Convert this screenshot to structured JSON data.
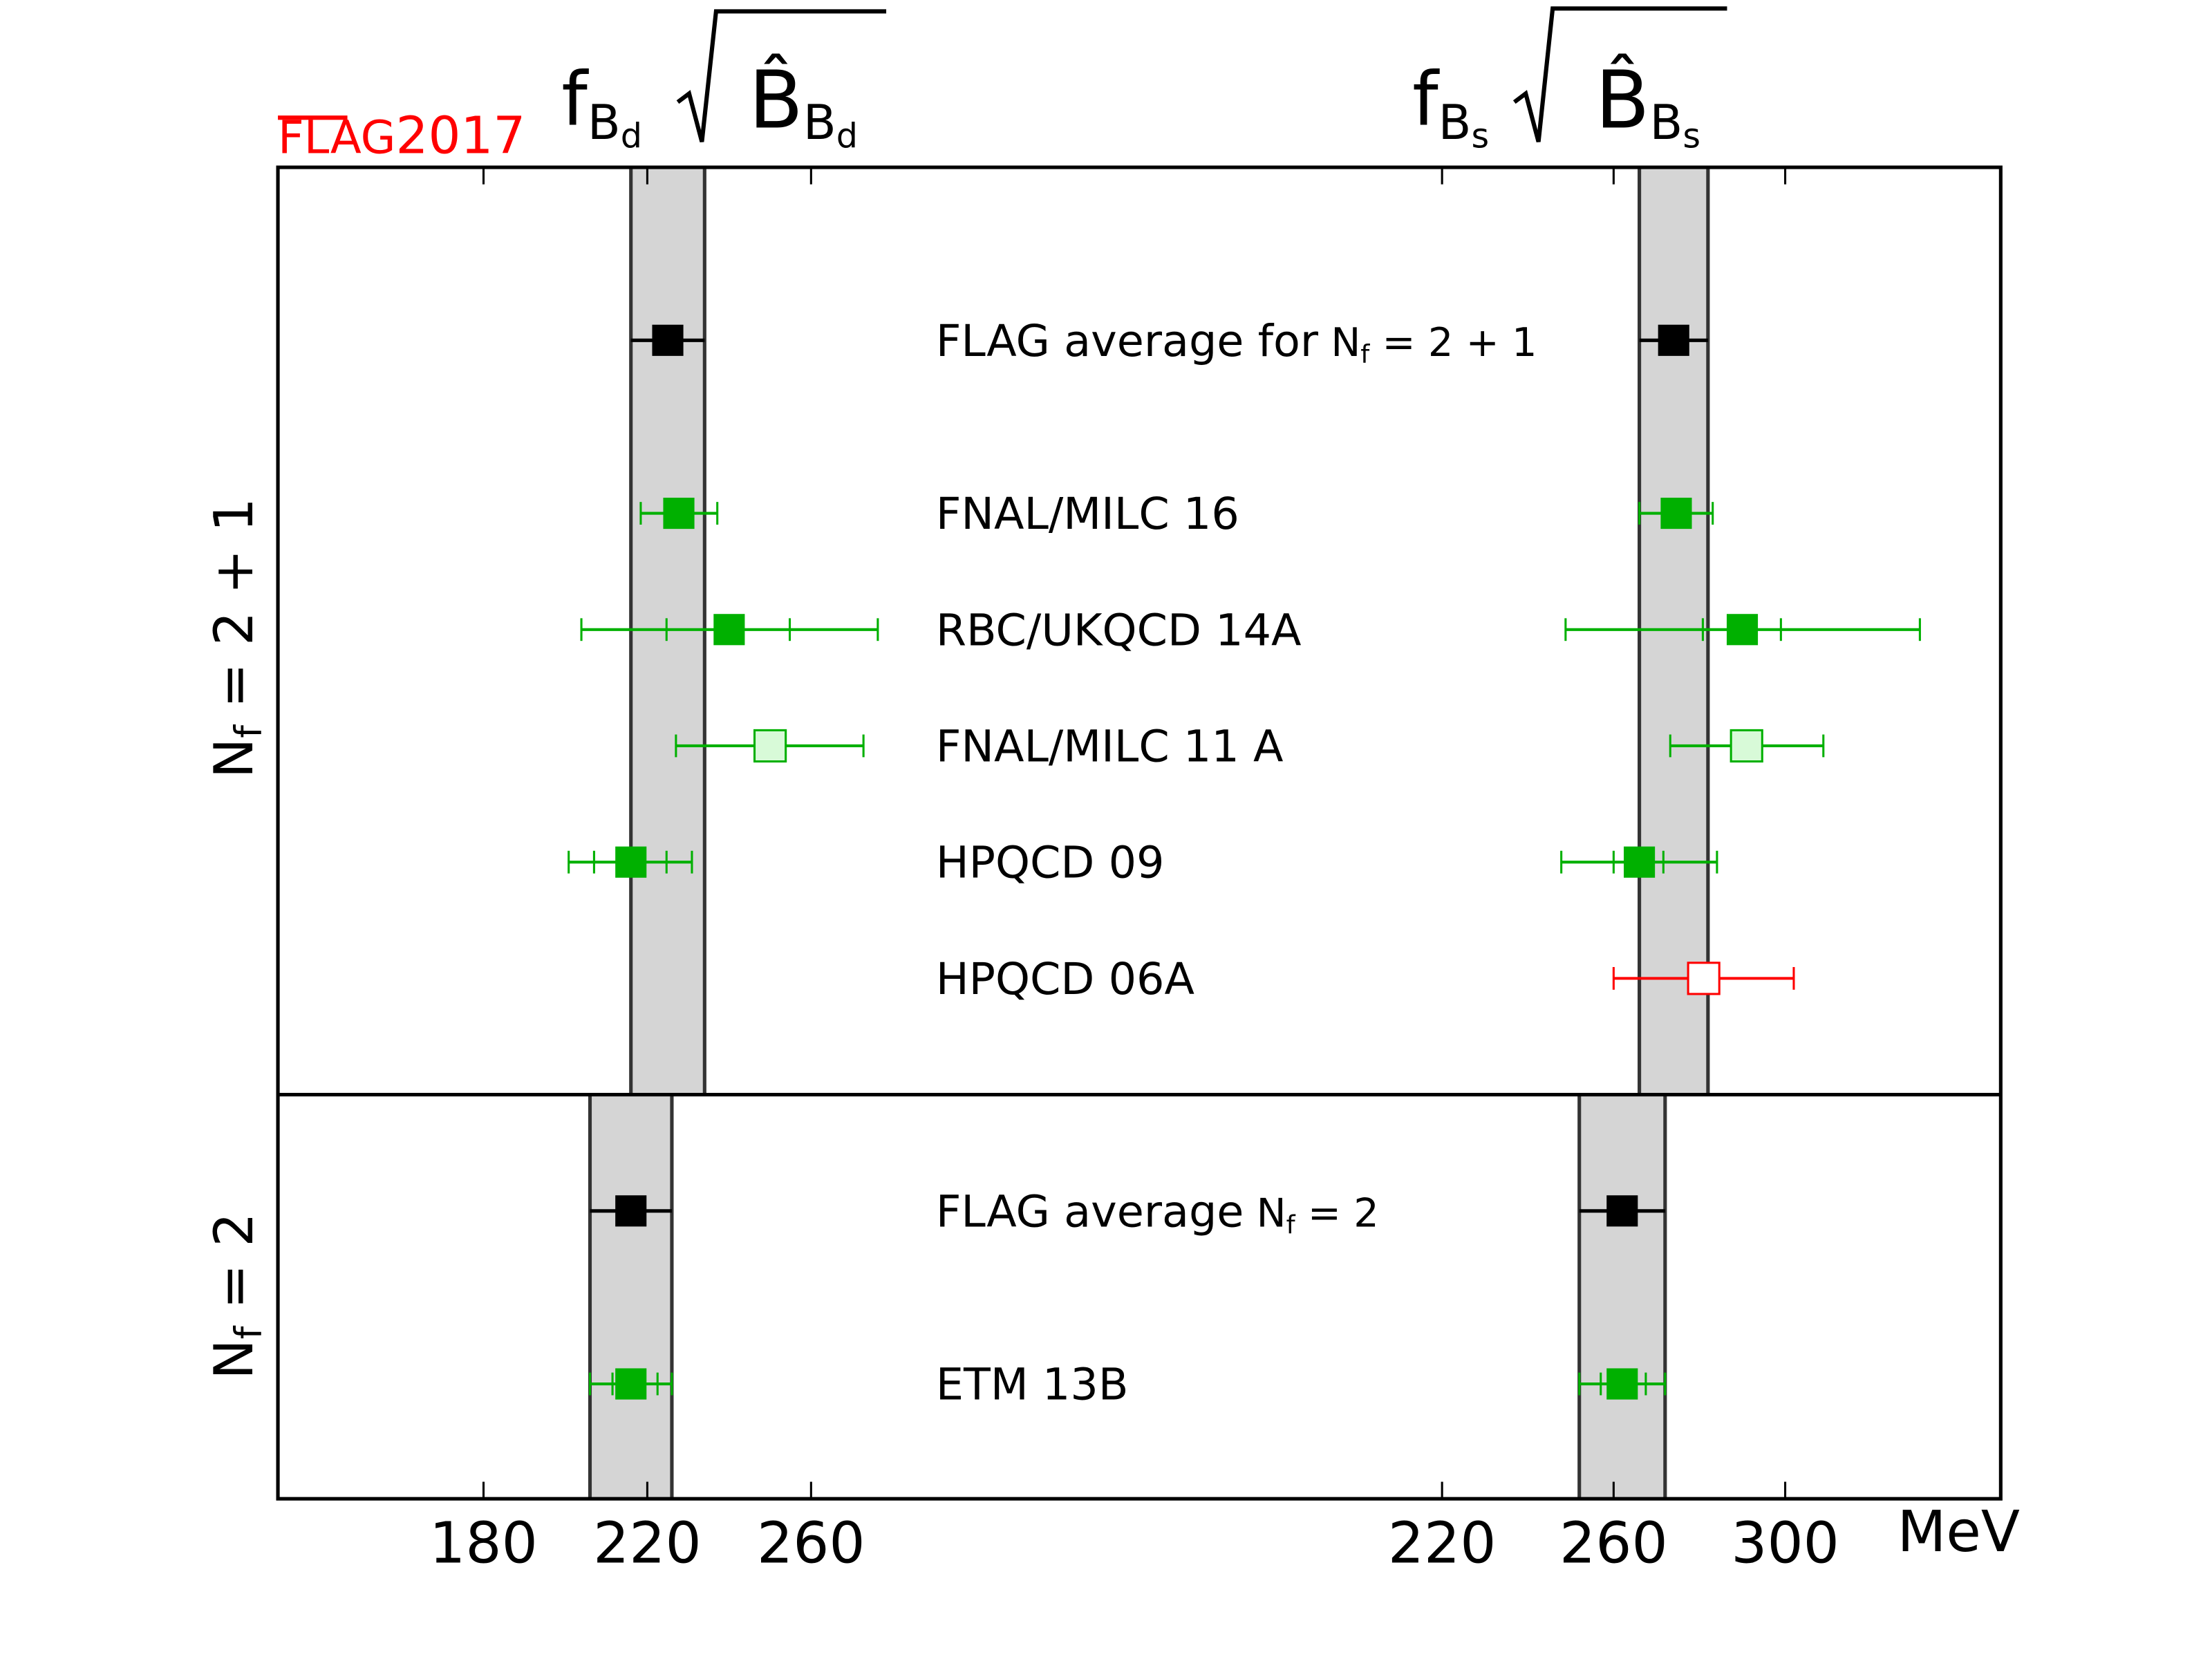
{
  "chart_data": {
    "type": "scatter",
    "subtype": "error-bar forest plot",
    "watermark": {
      "flag": "FLAG",
      "year": "2017",
      "color": "#ff0000"
    },
    "titles": {
      "left": {
        "f": "f",
        "sub": "B",
        "subsub": "d",
        "b": "B̂",
        "bsub": "B",
        "bsubsub": "d"
      },
      "right": {
        "f": "f",
        "sub": "B",
        "subsub": "s",
        "b": "B̂",
        "bsub": "B",
        "bsubsub": "s"
      }
    },
    "unit": "MeV",
    "axes": {
      "left": {
        "range": [
          130,
          355
        ],
        "ticks": [
          "180",
          "220",
          "260"
        ],
        "tick_values": [
          180,
          220,
          260
        ]
      },
      "right": {
        "range": [
          160,
          350
        ],
        "ticks": [
          "220",
          "260",
          "300"
        ],
        "tick_values": [
          220,
          260,
          300
        ]
      }
    },
    "panels": [
      {
        "label": {
          "n": "N",
          "sub": "f",
          "val": " = 2 + 1"
        },
        "band_left": [
          216,
          234
        ],
        "band_right": [
          266,
          282
        ]
      },
      {
        "label": {
          "n": "N",
          "sub": "f",
          "val": " = 2"
        },
        "band_left": [
          206,
          226
        ],
        "band_right": [
          252,
          272
        ]
      }
    ],
    "series": [
      {
        "name": "FLAG average for",
        "nf": {
          "n": "N",
          "sub": "f",
          "val": " = 2 + 1"
        },
        "panel": 0,
        "style": "average",
        "left": {
          "value": 225,
          "inner": null,
          "outer": [
            216,
            234
          ]
        },
        "right": {
          "value": 274,
          "inner": null,
          "outer": [
            266,
            282
          ]
        }
      },
      {
        "name": "FNAL/MILC 16",
        "panel": 0,
        "style": "filled",
        "left": {
          "value": 227.7,
          "inner": null,
          "outer": [
            218.4,
            237.1
          ]
        },
        "right": {
          "value": 274.6,
          "inner": null,
          "outer": [
            266,
            283.1
          ]
        }
      },
      {
        "name": "RBC/UKQCD 14A",
        "panel": 0,
        "style": "filled",
        "left": {
          "value": 240,
          "inner": [
            224.7,
            254.8
          ],
          "outer": [
            203.9,
            276.3
          ]
        },
        "right": {
          "value": 290,
          "inner": [
            280.8,
            299
          ],
          "outer": [
            248.8,
            331.4
          ]
        }
      },
      {
        "name": "FNAL/MILC 11 A",
        "panel": 0,
        "style": "open",
        "left": {
          "value": 250,
          "inner": null,
          "outer": [
            227,
            272.8
          ]
        },
        "right": {
          "value": 291,
          "inner": null,
          "outer": [
            273.2,
            308.9
          ]
        }
      },
      {
        "name": "HPQCD 09",
        "panel": 0,
        "style": "filled",
        "left": {
          "value": 216,
          "inner": [
            207,
            224.7
          ],
          "outer": [
            200.8,
            230.9
          ]
        },
        "right": {
          "value": 266,
          "inner": [
            260,
            271.6
          ],
          "outer": [
            247.8,
            284.1
          ]
        }
      },
      {
        "name": "HPQCD 06A",
        "panel": 0,
        "style": "red-open",
        "left": null,
        "right": {
          "value": 281,
          "inner": null,
          "outer": [
            260,
            302
          ]
        }
      },
      {
        "name": "FLAG average",
        "nf": {
          "n": "N",
          "sub": "f",
          "val": " = 2"
        },
        "panel": 1,
        "style": "average",
        "left": {
          "value": 216,
          "inner": null,
          "outer": [
            206,
            226
          ]
        },
        "right": {
          "value": 262,
          "inner": null,
          "outer": [
            252,
            272
          ]
        }
      },
      {
        "name": "ETM 13B",
        "panel": 1,
        "style": "filled",
        "left": {
          "value": 216,
          "inner": [
            211.5,
            222.5
          ],
          "outer": [
            206,
            226
          ]
        },
        "right": {
          "value": 262,
          "inner": [
            257,
            267.5
          ],
          "outer": [
            252,
            272
          ]
        }
      }
    ],
    "colors": {
      "average": "#000000",
      "green": "#00b000",
      "open_fill": "#d8fad8",
      "red": "#ff0000",
      "band": "#d5d5d5"
    }
  }
}
